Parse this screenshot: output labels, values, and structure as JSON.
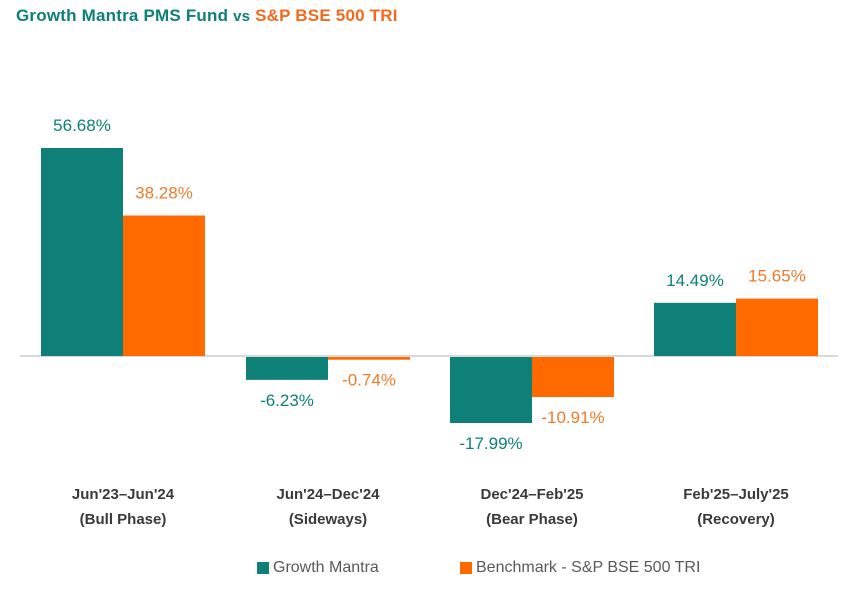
{
  "title": {
    "fund": "Growth Mantra PMS Fund",
    "vs": "vs",
    "benchmark": "S&P BSE 500 TRI"
  },
  "colors": {
    "fund": "#0e8078",
    "benchmark": "#ff6a00",
    "benchmark_label": "#f07a2a",
    "axis": "#d9d9d9",
    "category_text": "#3a3a3a"
  },
  "chart_data": {
    "type": "bar",
    "categories": [
      [
        "Jun'23–Jun'24",
        "(Bull Phase)"
      ],
      [
        "Jun'24–Dec'24",
        "(Sideways)"
      ],
      [
        "Dec'24–Feb'25",
        "(Bear Phase)"
      ],
      [
        "Feb'25–July'25",
        "(Recovery)"
      ]
    ],
    "series": [
      {
        "name": "Growth Mantra",
        "values": [
          56.68,
          -6.23,
          -17.99,
          14.49
        ],
        "labels": [
          "56.68%",
          "-6.23%",
          "-17.99%",
          "14.49%"
        ]
      },
      {
        "name": "Benchmark - S&P BSE 500 TRI",
        "values": [
          38.28,
          -0.74,
          -10.91,
          15.65
        ],
        "labels": [
          "38.28%",
          "-0.74%",
          "-10.91%",
          "15.65%"
        ]
      }
    ],
    "xlabel": "",
    "ylabel": "",
    "grid": false,
    "legend": "bottom"
  }
}
